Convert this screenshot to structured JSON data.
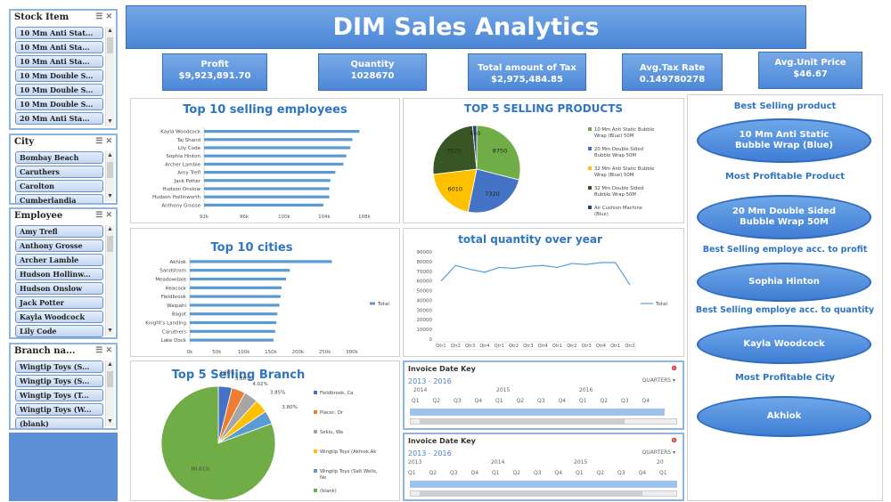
{
  "title": "DIM Sales Analytics",
  "kpis": [
    {
      "label": "Profit",
      "value": "$9,923,891.70"
    },
    {
      "label": "Quantity",
      "value": "1028670"
    },
    {
      "label": "Total amount of Tax",
      "value": "$2,975,484.85"
    },
    {
      "label": "Avg.Tax Rate",
      "value": "0.149780278"
    },
    {
      "label": "Avg.Unit Price",
      "value": "$46.67"
    }
  ],
  "slicers": {
    "stock": {
      "title": "Stock Item",
      "items": [
        "10 Mm Anti Stat...",
        "10 Mm Anti Sta...",
        "10 Mm Anti Sta...",
        "10 Mm Double S...",
        "10 Mm Double S...",
        "10 Mm Double S...",
        "20 Mm Anti Sta..."
      ]
    },
    "city": {
      "title": "City",
      "items": [
        "Bombay Beach",
        "Caruthers",
        "Carolton",
        "Cumberlandia"
      ]
    },
    "employee": {
      "title": "Employee",
      "items": [
        "Amy Trefl",
        "Anthony Grosse",
        "Archer Lamble",
        "Hudson Hollinw...",
        "Hudson Onslow",
        "Jack Potter",
        "Kayla Woodcock",
        "Lily Code"
      ]
    },
    "branch": {
      "title": "Branch na...",
      "items": [
        "Wingtip Toys (S...",
        "Wingtip Toys (S...",
        "Wingtip Toys (T...",
        "Wingtip Toys (W...",
        "(blank)"
      ]
    }
  },
  "top_employees": {
    "title": "Top 10 selling employees",
    "chart_data": {
      "type": "bar",
      "categories": [
        "Kayla Woodcock",
        "Taj Shand",
        "Lily Code",
        "Sophia Hinton",
        "Archer Lamble",
        "Amy Trefl",
        "Jack Potter",
        "Hudson Onslow",
        "Hudson Hollinworth",
        "Anthony Grosse"
      ],
      "values": [
        107.5,
        106.8,
        106.6,
        106.2,
        105.9,
        105.1,
        104.6,
        104.5,
        104.5,
        103.9
      ],
      "xticks": [
        "92k",
        "96k",
        "100k",
        "104k",
        "108k"
      ],
      "xlim": [
        92,
        108
      ]
    }
  },
  "top_products": {
    "title": "TOP 5 SELLING PRODUCTS",
    "chart_data": {
      "type": "pie",
      "labels": [
        "10 Mm Anti Static Bubble Wrap (Blue) 50M",
        "20 Mm Double Sided Bubble Wrap 50M",
        "32 Mm Anti Static Bubble Wrap (Blue) 50M",
        "32 Mm Double Sided Bubble Wrap 50M",
        "Air Cushion Machine (Blue)"
      ],
      "values": [
        8750,
        7320,
        6010,
        7670,
        460
      ],
      "data_labels": [
        "8750",
        "7320",
        "6010",
        "7670",
        "460"
      ],
      "colors": [
        "#70ad47",
        "#4472c4",
        "#ffc000",
        "#375623",
        "#264478"
      ]
    }
  },
  "top_cities": {
    "title": "Top 10 cities",
    "legend": "Total",
    "chart_data": {
      "type": "bar",
      "categories": [
        "Akhiok",
        "Sandstrom",
        "Meadowdale",
        "Heacock",
        "Fieldbrook",
        "Waipahi",
        "Bagot",
        "Knight's Landing",
        "Caruthers",
        "Lake Dock"
      ],
      "values": [
        263000,
        185000,
        178000,
        170000,
        168000,
        166000,
        162000,
        160000,
        158000,
        155000
      ],
      "xticks": [
        "0k",
        "50k",
        "100k",
        "150k",
        "200k",
        "250k",
        "300k"
      ],
      "xlim": [
        0,
        300000
      ]
    }
  },
  "quantity_year": {
    "title": "total quantity over year",
    "legend": "Total",
    "chart_data": {
      "type": "line",
      "yticks": [
        "90000",
        "80000",
        "70000",
        "60000",
        "50000",
        "40000",
        "30000",
        "20000",
        "10000",
        "0"
      ],
      "ylim": [
        0,
        90000
      ],
      "x": [
        "Qtr1",
        "Qtr2",
        "Qtr3",
        "Qtr4",
        "Qtr1",
        "Qtr2",
        "Qtr3",
        "Qtr4",
        "Qtr1",
        "Qtr2",
        "Qtr3",
        "Qtr4",
        "Qtr1",
        "Qtr2"
      ],
      "values": [
        60000,
        76000,
        72000,
        69000,
        74000,
        73000,
        75000,
        76000,
        74000,
        78000,
        77000,
        79000,
        79000,
        56000
      ]
    }
  },
  "top_branch": {
    "title": "Top 5 Selling Branch",
    "chart_data": {
      "type": "pie",
      "labels": [
        "Fieldbrook, Ca",
        "Placer, Or",
        "Sekiu, Wa",
        "Wingtip Toys (Akhiok,Ak",
        "Wingtip Toys (Salt Wells, Ne",
        "(blank)"
      ],
      "values": [
        3.86,
        3.86,
        4.02,
        3.85,
        3.8,
        80.61
      ],
      "data_labels": [
        "3.86%",
        "3.86%",
        "4.02%",
        "3.85%",
        "3.80%",
        "80.61%"
      ],
      "colors": [
        "#4472c4",
        "#ed7d31",
        "#a5a5a5",
        "#ffc000",
        "#5b9bd5",
        "#70ad47"
      ]
    }
  },
  "timelines": [
    {
      "header": "Invoice Date Key",
      "range": "2013 - 2016",
      "unit": "QUARTERS",
      "years": [
        "2014",
        "2015",
        "2016"
      ],
      "quarters": [
        "Q1",
        "Q2",
        "Q3",
        "Q4",
        "Q1",
        "Q2",
        "Q3",
        "Q4",
        "Q1",
        "Q2",
        "Q3",
        "Q4"
      ]
    },
    {
      "header": "Invoice Date Key",
      "range": "2013 - 2016",
      "unit": "QUARTERS",
      "years": [
        "2013",
        "2014",
        "2015",
        "20"
      ],
      "quarters": [
        "Q1",
        "Q2",
        "Q3",
        "Q4",
        "Q1",
        "Q2",
        "Q3",
        "Q4",
        "Q1",
        "Q2",
        "Q3",
        "Q4",
        "Q1"
      ]
    }
  ],
  "insights": [
    {
      "label": "Best Selling product",
      "value": "10 Mm Anti Static Bubble Wrap (Blue)"
    },
    {
      "label": "Most Profitable Product",
      "value": "20 Mm Double Sided Bubble Wrap 50M"
    },
    {
      "label": "Best Selling employe acc. to profit",
      "value": "Sophia Hinton"
    },
    {
      "label": "Best Selling employe acc. to quantity",
      "value": "Kayla Woodcock"
    },
    {
      "label": "Most Profitable City",
      "value": "Akhiok"
    }
  ]
}
